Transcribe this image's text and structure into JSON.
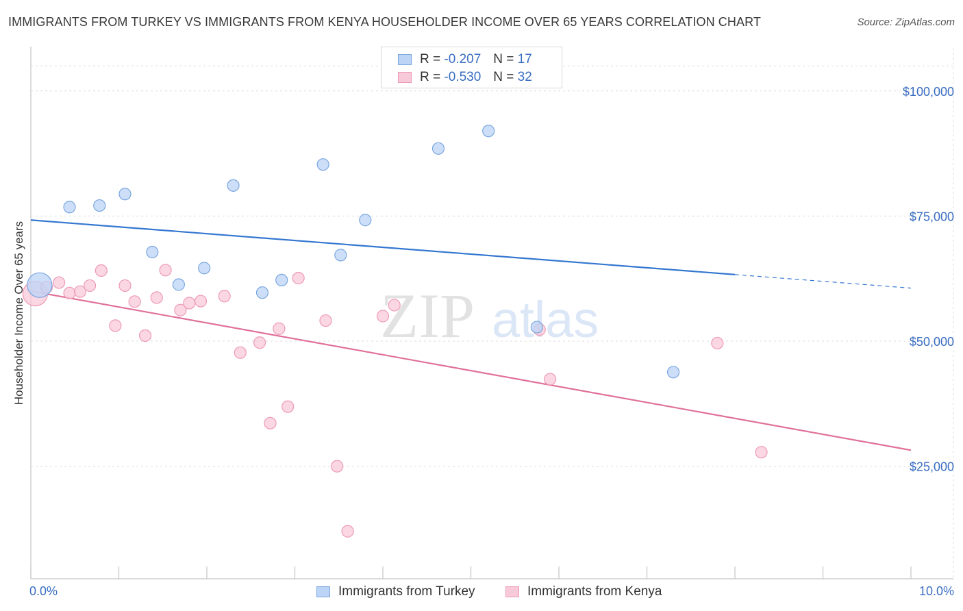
{
  "title": "IMMIGRANTS FROM TURKEY VS IMMIGRANTS FROM KENYA HOUSEHOLDER INCOME OVER 65 YEARS CORRELATION CHART",
  "source": "Source: ZipAtlas.com",
  "legend": {
    "turkey": {
      "r_label": "R =",
      "r_value": "-0.207",
      "n_label": "N =",
      "n_value": "17"
    },
    "kenya": {
      "r_label": "R =",
      "r_value": "-0.530",
      "n_label": "N =",
      "n_value": "32"
    }
  },
  "colors": {
    "turkey_fill": "#bcd4f5",
    "turkey_stroke": "#7aa6e0",
    "turkey_line": "#3477d1",
    "kenya_fill": "#f8c9d8",
    "kenya_stroke": "#ee9ab6",
    "kenya_line": "#e0709a",
    "axis_label": "#3a6ec2",
    "grid": "#dcdcdc"
  },
  "chart_data": {
    "type": "scatter",
    "title": "IMMIGRANTS FROM TURKEY VS IMMIGRANTS FROM KENYA HOUSEHOLDER INCOME OVER 65 YEARS CORRELATION CHART",
    "xlabel": "",
    "ylabel": "Householder Income Over 65 years",
    "xlim": [
      0,
      10
    ],
    "ylim": [
      2500,
      107500
    ],
    "x_tick_labels": [
      "0.0%",
      "10.0%"
    ],
    "y_ticks": [
      25000,
      50000,
      75000,
      100000
    ],
    "y_tick_labels": [
      "$25,000",
      "$50,000",
      "$75,000",
      "$100,000"
    ],
    "watermark": {
      "zip": "ZIP",
      "atlas": "atlas"
    },
    "series": [
      {
        "name": "Immigrants from Turkey",
        "points": [
          [
            0.1,
            61200
          ],
          [
            0.44,
            76800
          ],
          [
            0.78,
            77100
          ],
          [
            1.07,
            79400
          ],
          [
            1.38,
            67800
          ],
          [
            1.68,
            61300
          ],
          [
            1.97,
            64600
          ],
          [
            2.3,
            81100
          ],
          [
            2.63,
            59700
          ],
          [
            2.85,
            62200
          ],
          [
            3.32,
            85300
          ],
          [
            3.52,
            67200
          ],
          [
            3.8,
            74200
          ],
          [
            4.63,
            88500
          ],
          [
            5.2,
            92000
          ],
          [
            5.75,
            52800
          ],
          [
            7.3,
            43800
          ]
        ],
        "trend": {
          "x0": 0,
          "y0": 74200,
          "x1": 8.0,
          "y1": 63300,
          "dash_to": 10,
          "dash_y": 60600
        }
      },
      {
        "name": "Immigrants from Kenya",
        "points": [
          [
            0.05,
            59500
          ],
          [
            0.18,
            60800
          ],
          [
            0.32,
            61700
          ],
          [
            0.44,
            59600
          ],
          [
            0.56,
            59900
          ],
          [
            0.67,
            61100
          ],
          [
            0.8,
            64100
          ],
          [
            0.96,
            53100
          ],
          [
            1.07,
            61100
          ],
          [
            1.18,
            57900
          ],
          [
            1.3,
            51100
          ],
          [
            1.43,
            58700
          ],
          [
            1.53,
            64200
          ],
          [
            1.7,
            56200
          ],
          [
            1.8,
            57600
          ],
          [
            1.93,
            58000
          ],
          [
            2.2,
            59000
          ],
          [
            2.38,
            47700
          ],
          [
            2.6,
            49700
          ],
          [
            2.72,
            33600
          ],
          [
            2.82,
            52500
          ],
          [
            2.92,
            36900
          ],
          [
            3.04,
            62600
          ],
          [
            3.35,
            54100
          ],
          [
            3.48,
            25000
          ],
          [
            3.6,
            12000
          ],
          [
            4.0,
            55000
          ],
          [
            4.13,
            57200
          ],
          [
            5.78,
            52300
          ],
          [
            5.9,
            42400
          ],
          [
            7.8,
            49600
          ],
          [
            8.3,
            27800
          ]
        ],
        "trend": {
          "x0": 0,
          "y0": 60000,
          "x1": 10,
          "y1": 28200
        }
      }
    ]
  },
  "ylabel": "Householder Income Over 65 years",
  "bottom_legend": {
    "turkey": "Immigrants from Turkey",
    "kenya": "Immigrants from Kenya"
  }
}
